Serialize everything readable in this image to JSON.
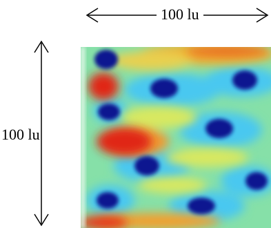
{
  "width_label": "100 lu",
  "height_label": "100 lu",
  "colormap": {
    "background": "#7ee0a0",
    "low": "#0a1a8c",
    "high": "#e02010",
    "mid_high": "#f08a20",
    "mid": "#d8e850",
    "cool": "#40c0f0"
  }
}
